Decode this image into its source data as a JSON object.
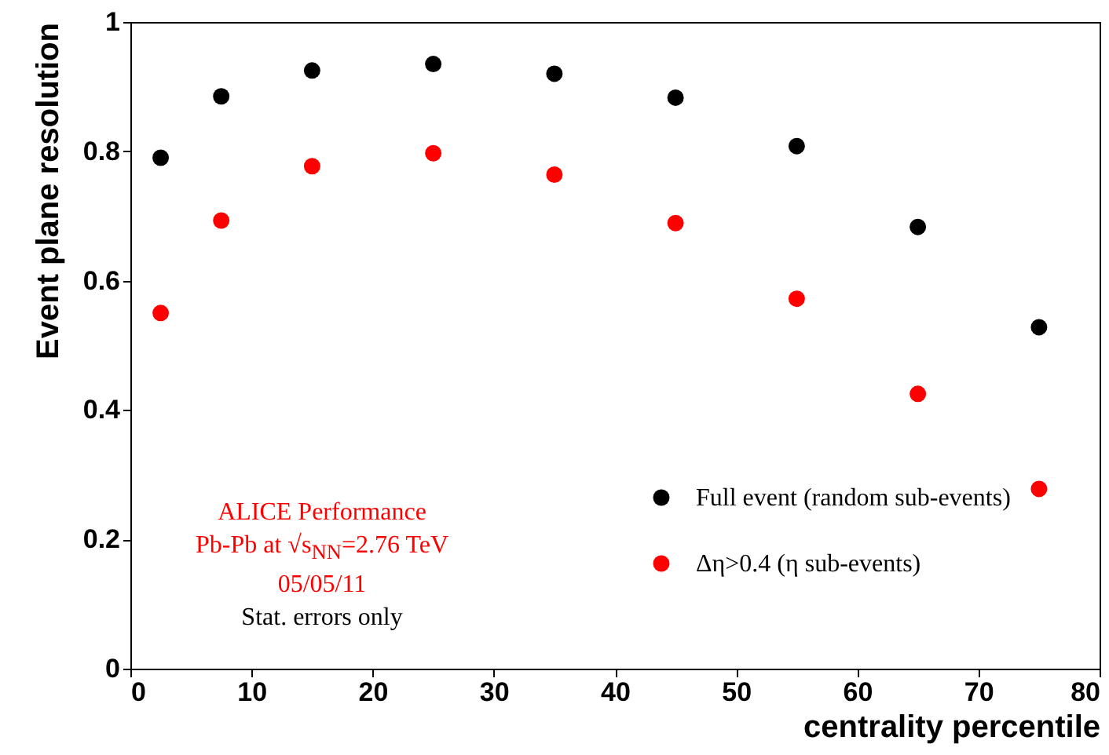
{
  "chart_data": {
    "type": "scatter",
    "xlabel": "centrality percentile",
    "ylabel": "Event plane resolution",
    "x": [
      2.5,
      7.5,
      15,
      25,
      35,
      45,
      55,
      65,
      75
    ],
    "series": [
      {
        "name": "Full event (random sub-events)",
        "color": "#000000",
        "values": [
          0.79,
          0.885,
          0.925,
          0.935,
          0.92,
          0.883,
          0.808,
          0.683,
          0.528
        ]
      },
      {
        "name": "Δη>0.4 (η sub-events)",
        "color": "#ff0000",
        "values": [
          0.55,
          0.693,
          0.777,
          0.797,
          0.764,
          0.689,
          0.572,
          0.425,
          0.278
        ]
      }
    ],
    "xlim": [
      0,
      80
    ],
    "xticks": [
      0,
      10,
      20,
      30,
      40,
      50,
      60,
      70,
      80
    ],
    "ylim": [
      0,
      1
    ],
    "yticks": [
      0,
      0.2,
      0.4,
      0.6,
      0.8,
      1
    ],
    "marker": "circle",
    "grid": false,
    "legend": "bottom right",
    "annotations": [
      "ALICE Performance",
      "Pb-Pb at √s$_{NN}$=2.76 TeV",
      "05/05/11",
      "Stat. errors only"
    ]
  }
}
